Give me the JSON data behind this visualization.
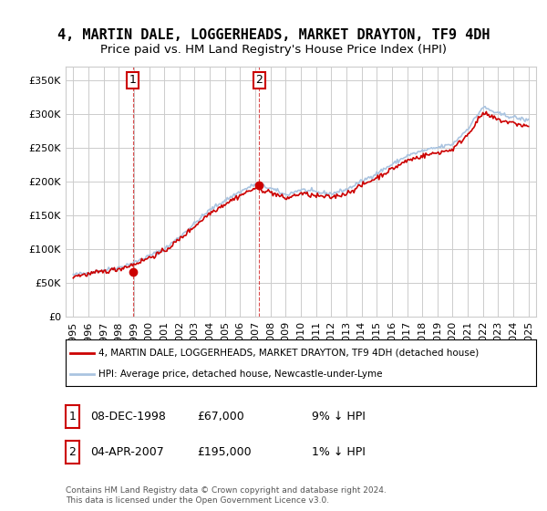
{
  "title": "4, MARTIN DALE, LOGGERHEADS, MARKET DRAYTON, TF9 4DH",
  "subtitle": "Price paid vs. HM Land Registry's House Price Index (HPI)",
  "legend_line1": "4, MARTIN DALE, LOGGERHEADS, MARKET DRAYTON, TF9 4DH (detached house)",
  "legend_line2": "HPI: Average price, detached house, Newcastle-under-Lyme",
  "annotation1_label": "1",
  "annotation1_date": "08-DEC-1998",
  "annotation1_price": "£67,000",
  "annotation1_hpi": "9% ↓ HPI",
  "annotation2_label": "2",
  "annotation2_date": "04-APR-2007",
  "annotation2_price": "£195,000",
  "annotation2_hpi": "1% ↓ HPI",
  "footer": "Contains HM Land Registry data © Crown copyright and database right 2024.\nThis data is licensed under the Open Government Licence v3.0.",
  "hpi_color": "#aac4e0",
  "price_color": "#cc0000",
  "marker_color": "#cc0000",
  "annotation_box_color": "#cc0000",
  "background_color": "#ffffff",
  "grid_color": "#cccccc",
  "sale1_year": 1998.92,
  "sale1_value": 67000,
  "sale2_year": 2007.25,
  "sale2_value": 195000,
  "ylim_min": 0,
  "ylim_max": 370000,
  "xlim_min": 1994.5,
  "xlim_max": 2025.5
}
